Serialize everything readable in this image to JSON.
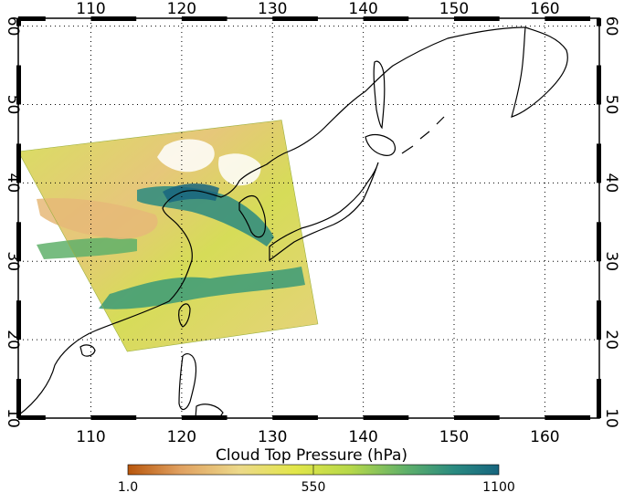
{
  "map": {
    "lon_ticks": [
      "110",
      "120",
      "130",
      "140",
      "150",
      "160"
    ],
    "lat_ticks": [
      "10",
      "20",
      "30",
      "40",
      "50",
      "60"
    ],
    "lon_range": [
      102,
      166
    ],
    "lat_range": [
      10,
      61
    ],
    "grid": true,
    "grid_style": "dotted"
  },
  "swath": {
    "corners_lonlat": [
      [
        102,
        44
      ],
      [
        131,
        48
      ],
      [
        135,
        22
      ],
      [
        114,
        18.5
      ]
    ],
    "variable": "cloud top pressure"
  },
  "colorbar": {
    "title": "Cloud Top Pressure (hPa)",
    "min_label": "1.0",
    "mid_label": "550",
    "max_label": "1100",
    "colors": [
      "#b8560c",
      "#e0a060",
      "#ecd98a",
      "#e2e64a",
      "#b6d84a",
      "#5fb06a",
      "#2a8a80",
      "#17657f"
    ]
  }
}
